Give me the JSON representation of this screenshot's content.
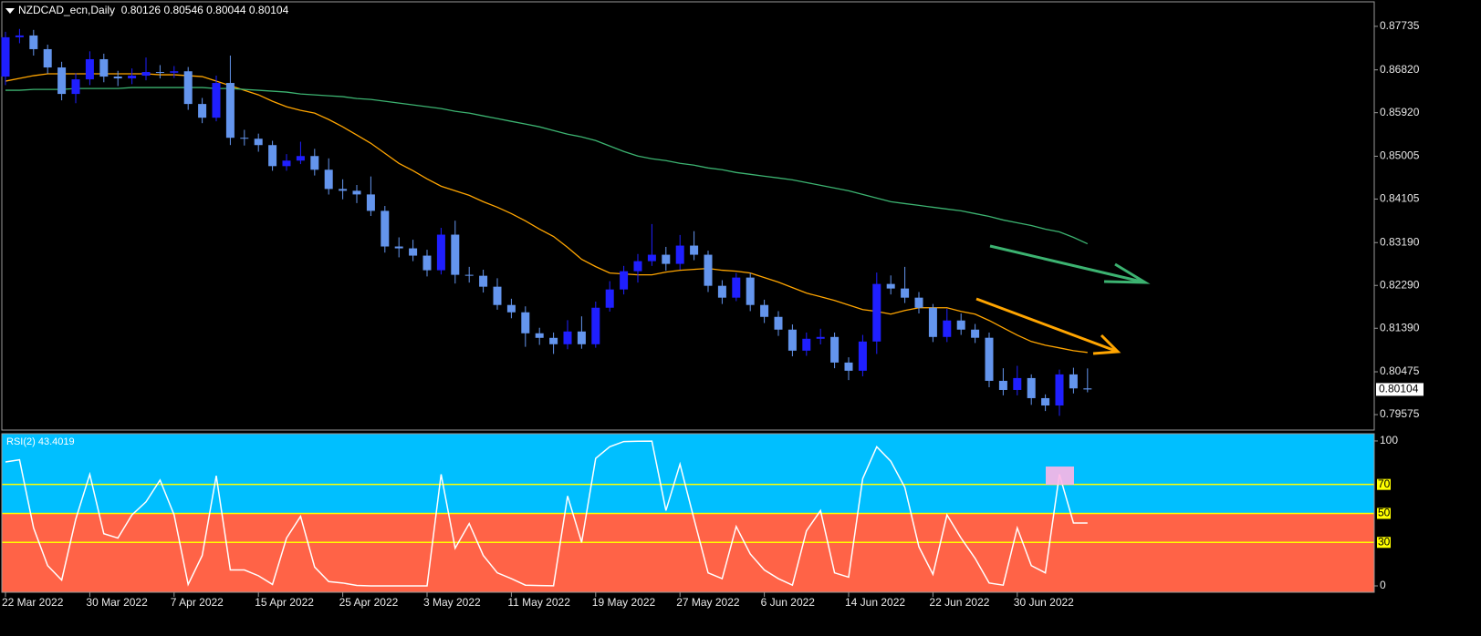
{
  "chart_data": [
    {
      "type": "candlestick",
      "title": "NZDCAD_ecn,Daily",
      "categories": [
        "22 Mar 2022",
        null,
        null,
        null,
        null,
        null,
        "30 Mar 2022",
        null,
        null,
        null,
        null,
        null,
        "7 Apr 2022",
        null,
        null,
        null,
        null,
        null,
        "15 Apr 2022",
        null,
        null,
        null,
        null,
        null,
        "25 Apr 2022",
        null,
        null,
        null,
        null,
        null,
        "3 May 2022",
        null,
        null,
        null,
        null,
        null,
        "11 May 2022",
        null,
        null,
        null,
        null,
        null,
        "19 May 2022",
        null,
        null,
        null,
        null,
        null,
        "27 May 2022",
        null,
        null,
        null,
        null,
        null,
        "6 Jun 2022",
        null,
        null,
        null,
        null,
        null,
        "14 Jun 2022",
        null,
        null,
        null,
        null,
        null,
        "22 Jun 2022",
        null,
        null,
        null,
        null,
        null,
        "30 Jun 2022",
        null,
        null,
        null,
        null,
        null
      ],
      "open": [
        0.86679,
        0.87505,
        0.87543,
        0.87255,
        0.86871,
        0.86314,
        0.86621,
        0.87044,
        0.86679,
        0.86641,
        0.86698,
        0.86775,
        0.8676,
        0.8679,
        0.86103,
        0.85815,
        0.86545,
        0.85393,
        0.85373,
        0.85239,
        0.84797,
        0.84913,
        0.85009,
        0.84721,
        0.84317,
        0.84279,
        0.84202,
        0.83857,
        0.83108,
        0.83069,
        0.82916,
        0.82609,
        0.83357,
        0.82513,
        0.82493,
        0.82263,
        0.81879,
        0.81725,
        0.81284,
        0.81188,
        0.81054,
        0.81322,
        0.81054,
        0.81821,
        0.82205,
        0.82589,
        0.828,
        0.82935,
        0.82743,
        0.83127,
        0.82935,
        0.82282,
        0.82033,
        0.82455,
        0.81879,
        0.81629,
        0.81361,
        0.80919,
        0.81169,
        0.81207,
        0.80669,
        0.80497,
        0.81111,
        0.82321,
        0.82225,
        0.82033,
        0.81821,
        0.81207,
        0.81553,
        0.81361,
        0.8119,
        0.80285,
        0.80093,
        0.80343,
        0.79921,
        0.79767,
        0.8042,
        0.80126
      ],
      "high": [
        0.8762,
        0.8768,
        0.8766,
        0.8735,
        0.8699,
        0.8675,
        0.8721,
        0.8716,
        0.868,
        0.8685,
        0.8708,
        0.8692,
        0.869,
        0.8688,
        0.8623,
        0.867,
        0.8712,
        0.8556,
        0.8548,
        0.8533,
        0.8505,
        0.8531,
        0.8516,
        0.8496,
        0.8452,
        0.844,
        0.8458,
        0.8396,
        0.833,
        0.8325,
        0.8304,
        0.835,
        0.8365,
        0.8268,
        0.8262,
        0.8244,
        0.8201,
        0.8185,
        0.814,
        0.813,
        0.8156,
        0.8164,
        0.8195,
        0.8238,
        0.827,
        0.8295,
        0.8358,
        0.831,
        0.8335,
        0.8343,
        0.8302,
        0.824,
        0.8255,
        0.8255,
        0.8199,
        0.8175,
        0.8147,
        0.813,
        0.8138,
        0.813,
        0.8078,
        0.8125,
        0.8256,
        0.825,
        0.8268,
        0.8215,
        0.819,
        0.818,
        0.817,
        0.8148,
        0.813,
        0.8055,
        0.806,
        0.8042,
        0.8,
        0.8052,
        0.8056,
        0.80546
      ],
      "low": [
        0.865,
        0.8738,
        0.8712,
        0.8674,
        0.8618,
        0.8612,
        0.865,
        0.8656,
        0.8648,
        0.8652,
        0.866,
        0.8664,
        0.8665,
        0.8598,
        0.857,
        0.8574,
        0.8524,
        0.8523,
        0.851,
        0.847,
        0.847,
        0.8484,
        0.846,
        0.842,
        0.841,
        0.8402,
        0.8375,
        0.8298,
        0.8288,
        0.828,
        0.8248,
        0.8252,
        0.8233,
        0.8235,
        0.8214,
        0.8178,
        0.816,
        0.81,
        0.8104,
        0.8085,
        0.8095,
        0.8096,
        0.8098,
        0.8174,
        0.821,
        0.8235,
        0.827,
        0.826,
        0.8262,
        0.8282,
        0.8215,
        0.819,
        0.8196,
        0.8175,
        0.815,
        0.8123,
        0.808,
        0.8081,
        0.8105,
        0.8055,
        0.803,
        0.8038,
        0.8085,
        0.821,
        0.8192,
        0.817,
        0.811,
        0.811,
        0.8125,
        0.8108,
        0.8015,
        0.7998,
        0.7998,
        0.7978,
        0.7965,
        0.7955,
        0.8002,
        0.80044
      ],
      "close": [
        0.87505,
        0.87543,
        0.87255,
        0.86871,
        0.86314,
        0.86621,
        0.87044,
        0.86679,
        0.86641,
        0.86698,
        0.86775,
        0.8676,
        0.8679,
        0.86103,
        0.85815,
        0.86545,
        0.85393,
        0.85373,
        0.85239,
        0.84797,
        0.84913,
        0.85009,
        0.84721,
        0.84317,
        0.84279,
        0.84202,
        0.83857,
        0.83108,
        0.83069,
        0.82916,
        0.82609,
        0.83357,
        0.82513,
        0.82493,
        0.82263,
        0.81879,
        0.81725,
        0.81284,
        0.81188,
        0.81054,
        0.81322,
        0.81054,
        0.81821,
        0.82205,
        0.82589,
        0.828,
        0.82935,
        0.82743,
        0.83127,
        0.82935,
        0.82282,
        0.82033,
        0.82455,
        0.81879,
        0.81629,
        0.81361,
        0.80919,
        0.81169,
        0.81207,
        0.80669,
        0.80497,
        0.81111,
        0.82321,
        0.82225,
        0.82033,
        0.81821,
        0.81207,
        0.81553,
        0.81361,
        0.8119,
        0.80285,
        0.80093,
        0.80343,
        0.79921,
        0.79767,
        0.8042,
        0.80126,
        0.80104
      ],
      "up_color": "#1f1fff",
      "down_color": "#6495ed",
      "series": [
        {
          "color": "#ffa500",
          "values": [
            0.86583,
            0.86641,
            0.86698,
            0.86737,
            0.86737,
            0.86737,
            0.86737,
            0.86737,
            0.86737,
            0.86737,
            0.86737,
            0.86717,
            0.86717,
            0.86698,
            0.86679,
            0.86583,
            0.86487,
            0.86391,
            0.86295,
            0.86161,
            0.86045,
            0.85969,
            0.85911,
            0.85777,
            0.85623,
            0.8545,
            0.85277,
            0.85066,
            0.84855,
            0.84701,
            0.84529,
            0.84375,
            0.84279,
            0.84183,
            0.84049,
            0.83933,
            0.83799,
            0.83645,
            0.83473,
            0.83319,
            0.83089,
            0.82839,
            0.82685,
            0.82551,
            0.82532,
            0.82513,
            0.82513,
            0.8257,
            0.82609,
            0.82628,
            0.82647,
            0.82609,
            0.82589,
            0.82551,
            0.82455,
            0.82359,
            0.82244,
            0.82129,
            0.82052,
            0.81975,
            0.81879,
            0.81783,
            0.81745,
            0.81687,
            0.81764,
            0.81821,
            0.81821,
            0.81821,
            0.81745,
            0.81687,
            0.81553,
            0.81399,
            0.81245,
            0.81111,
            0.81034,
            0.80977,
            0.80919,
            0.80881
          ]
        },
        {
          "color": "#3cb371",
          "values": [
            0.86391,
            0.86391,
            0.8641,
            0.8641,
            0.8641,
            0.86429,
            0.86429,
            0.86429,
            0.86429,
            0.86449,
            0.86449,
            0.86449,
            0.86449,
            0.86449,
            0.86449,
            0.86429,
            0.86429,
            0.8641,
            0.86391,
            0.86372,
            0.86353,
            0.86314,
            0.86295,
            0.86276,
            0.86257,
            0.86218,
            0.86199,
            0.86161,
            0.86122,
            0.86084,
            0.86045,
            0.86007,
            0.85949,
            0.85911,
            0.85853,
            0.85796,
            0.85738,
            0.85681,
            0.85623,
            0.85546,
            0.85469,
            0.85412,
            0.85335,
            0.8522,
            0.85105,
            0.85009,
            0.84951,
            0.84913,
            0.84855,
            0.84817,
            0.84759,
            0.84721,
            0.84663,
            0.84625,
            0.84586,
            0.84548,
            0.84509,
            0.84452,
            0.84394,
            0.84337,
            0.84279,
            0.84202,
            0.84125,
            0.84049,
            0.8401,
            0.83972,
            0.83933,
            0.83895,
            0.83857,
            0.83799,
            0.83741,
            0.83665,
            0.83607,
            0.83549,
            0.83473,
            0.83415,
            0.833,
            0.83165
          ]
        }
      ],
      "ylim": [
        0.7925,
        0.8825
      ],
      "yticks": [
        0.87735,
        {
          "value": 0.8682,
          "label": "0.86820"
        },
        {
          "value": 0.8592,
          "label": "0.85920"
        },
        0.85005,
        0.84105,
        {
          "value": 0.8319,
          "label": "0.83190"
        },
        {
          "value": 0.8229,
          "label": "0.82290"
        },
        {
          "value": 0.8139,
          "label": "0.81390"
        },
        0.80475,
        0.79575
      ]
    },
    {
      "type": "line",
      "title": "RSI(2)",
      "series": [
        {
          "color": "#ffffff",
          "values": [
            85.5,
            87,
            40,
            14,
            4,
            46,
            77,
            36,
            33,
            49,
            58,
            73,
            49,
            1,
            21,
            76,
            11,
            11,
            7,
            1,
            33,
            48,
            13,
            3,
            2,
            0.3,
            0,
            0,
            0,
            0,
            0,
            77,
            26,
            43,
            21,
            9,
            5,
            0.5,
            0.2,
            0.1,
            62,
            30,
            88,
            96,
            99.6,
            99.8,
            99.9,
            52,
            84,
            46,
            9,
            5,
            41,
            22,
            11,
            5,
            0.5,
            38,
            52,
            9,
            6,
            74,
            96,
            86,
            68,
            27,
            8,
            49,
            33,
            19,
            2,
            0.5,
            40,
            14,
            9,
            77,
            43.4,
            43.4019
          ]
        }
      ],
      "ylim": [
        -4.4,
        105
      ],
      "yticks": [
        0,
        100
      ],
      "levels": [
        30,
        50,
        70
      ],
      "level_color": "#ffff00",
      "fill_split": 50,
      "fill_above_color": "#00bfff",
      "fill_below_color": "#ff6347"
    }
  ]
}
